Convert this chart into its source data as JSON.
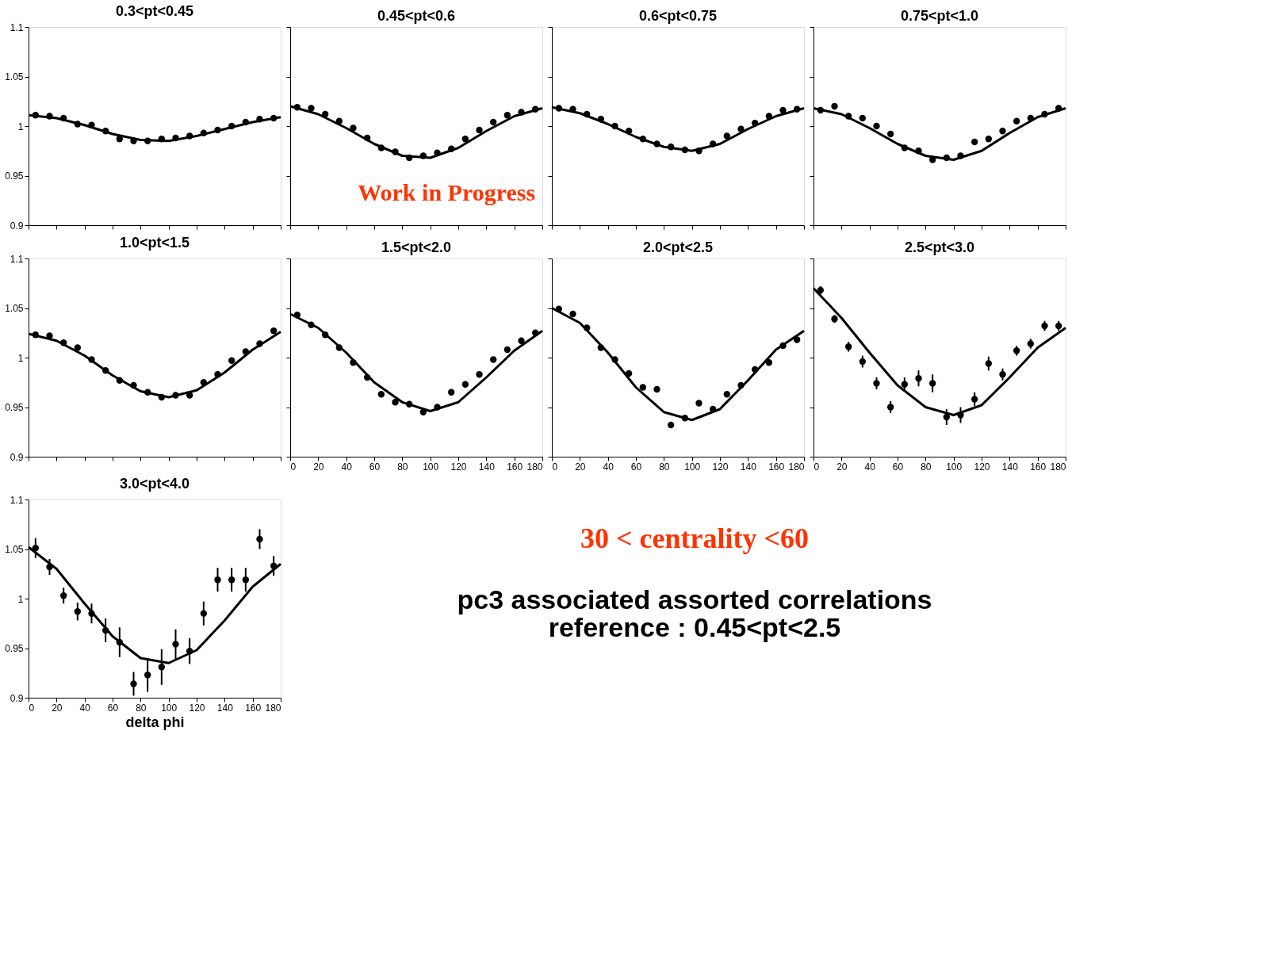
{
  "chart_data": [
    {
      "type": "scatter",
      "title": "0.3<pt<0.45",
      "x": [
        5,
        15,
        25,
        35,
        45,
        55,
        65,
        75,
        85,
        95,
        105,
        115,
        125,
        135,
        145,
        155,
        165,
        175
      ],
      "xlim": [
        0,
        180
      ],
      "xticks": [
        0,
        20,
        40,
        60,
        80,
        100,
        120,
        140,
        160,
        180
      ],
      "ylim": [
        0.9,
        1.1
      ],
      "yticks": [
        0.9,
        0.95,
        1,
        1.05,
        1.1
      ],
      "marker": "circle",
      "tick_labels": "y",
      "series": [
        {
          "color": "#000000",
          "values": [
            1.011,
            1.01,
            1.008,
            1.002,
            1.001,
            0.995,
            0.987,
            0.985,
            0.985,
            0.987,
            0.988,
            0.99,
            0.993,
            0.996,
            1.0,
            1.004,
            1.007,
            1.008
          ]
        },
        {
          "type": "line",
          "marker": "none",
          "color": "#000000",
          "x": [
            0,
            20,
            40,
            60,
            80,
            100,
            120,
            140,
            160,
            180
          ],
          "values": [
            1.011,
            1.008,
            1.001,
            0.992,
            0.986,
            0.985,
            0.99,
            0.997,
            1.004,
            1.009
          ]
        }
      ]
    },
    {
      "type": "scatter",
      "title": "0.45<pt<0.6",
      "annotations": [
        "Work in Progress"
      ],
      "x": [
        5,
        15,
        25,
        35,
        45,
        55,
        65,
        75,
        85,
        95,
        105,
        115,
        125,
        135,
        145,
        155,
        165,
        175
      ],
      "xlim": [
        0,
        180
      ],
      "xticks": [
        0,
        20,
        40,
        60,
        80,
        100,
        120,
        140,
        160,
        180
      ],
      "ylim": [
        0.9,
        1.1
      ],
      "yticks": [
        0.9,
        0.95,
        1,
        1.05,
        1.1
      ],
      "marker": "circle",
      "tick_labels": false,
      "series": [
        {
          "color": "#000000",
          "values": [
            1.019,
            1.018,
            1.012,
            1.005,
            0.998,
            0.988,
            0.978,
            0.974,
            0.968,
            0.97,
            0.973,
            0.977,
            0.987,
            0.996,
            1.004,
            1.011,
            1.014,
            1.017
          ]
        },
        {
          "type": "line",
          "marker": "none",
          "color": "#000000",
          "x": [
            0,
            20,
            40,
            60,
            80,
            100,
            120,
            140,
            160,
            180
          ],
          "values": [
            1.02,
            1.012,
            0.998,
            0.982,
            0.97,
            0.968,
            0.978,
            0.995,
            1.01,
            1.018
          ]
        }
      ]
    },
    {
      "type": "scatter",
      "title": "0.6<pt<0.75",
      "x": [
        5,
        15,
        25,
        35,
        45,
        55,
        65,
        75,
        85,
        95,
        105,
        115,
        125,
        135,
        145,
        155,
        165,
        175
      ],
      "xlim": [
        0,
        180
      ],
      "xticks": [
        0,
        20,
        40,
        60,
        80,
        100,
        120,
        140,
        160,
        180
      ],
      "ylim": [
        0.9,
        1.1
      ],
      "yticks": [
        0.9,
        0.95,
        1,
        1.05,
        1.1
      ],
      "marker": "circle",
      "tick_labels": false,
      "series": [
        {
          "color": "#000000",
          "values": [
            1.018,
            1.017,
            1.012,
            1.007,
            1.0,
            0.995,
            0.987,
            0.982,
            0.979,
            0.976,
            0.975,
            0.982,
            0.99,
            0.997,
            1.003,
            1.01,
            1.016,
            1.017
          ]
        },
        {
          "type": "line",
          "marker": "none",
          "color": "#000000",
          "x": [
            0,
            20,
            40,
            60,
            80,
            100,
            120,
            140,
            160,
            180
          ],
          "values": [
            1.019,
            1.013,
            1.002,
            0.989,
            0.979,
            0.975,
            0.982,
            0.997,
            1.01,
            1.018
          ]
        }
      ]
    },
    {
      "type": "scatter",
      "title": "0.75<pt<1.0",
      "x": [
        5,
        15,
        25,
        35,
        45,
        55,
        65,
        75,
        85,
        95,
        105,
        115,
        125,
        135,
        145,
        155,
        165,
        175
      ],
      "xlim": [
        0,
        180
      ],
      "xticks": [
        0,
        20,
        40,
        60,
        80,
        100,
        120,
        140,
        160,
        180
      ],
      "ylim": [
        0.9,
        1.1
      ],
      "yticks": [
        0.9,
        0.95,
        1,
        1.05,
        1.1
      ],
      "marker": "circle",
      "tick_labels": false,
      "series": [
        {
          "color": "#000000",
          "values": [
            1.016,
            1.02,
            1.01,
            1.008,
            1.0,
            0.992,
            0.978,
            0.975,
            0.966,
            0.968,
            0.97,
            0.984,
            0.987,
            0.995,
            1.005,
            1.008,
            1.012,
            1.018
          ]
        },
        {
          "type": "line",
          "marker": "none",
          "color": "#000000",
          "x": [
            0,
            20,
            40,
            60,
            80,
            100,
            120,
            140,
            160,
            180
          ],
          "values": [
            1.018,
            1.012,
            0.998,
            0.982,
            0.97,
            0.966,
            0.975,
            0.993,
            1.009,
            1.018
          ]
        }
      ]
    },
    {
      "type": "scatter",
      "title": "1.0<pt<1.5",
      "x": [
        5,
        15,
        25,
        35,
        45,
        55,
        65,
        75,
        85,
        95,
        105,
        115,
        125,
        135,
        145,
        155,
        165,
        175
      ],
      "xlim": [
        0,
        180
      ],
      "xticks": [
        0,
        20,
        40,
        60,
        80,
        100,
        120,
        140,
        160,
        180
      ],
      "ylim": [
        0.9,
        1.1
      ],
      "yticks": [
        0.9,
        0.95,
        1,
        1.05,
        1.1
      ],
      "marker": "circle",
      "tick_labels": "y",
      "series": [
        {
          "color": "#000000",
          "values": [
            1.023,
            1.022,
            1.015,
            1.01,
            0.998,
            0.987,
            0.977,
            0.972,
            0.965,
            0.96,
            0.962,
            0.962,
            0.975,
            0.983,
            0.997,
            1.006,
            1.014,
            1.027
          ]
        },
        {
          "type": "line",
          "marker": "none",
          "color": "#000000",
          "x": [
            0,
            20,
            40,
            60,
            80,
            100,
            120,
            140,
            160,
            180
          ],
          "values": [
            1.024,
            1.017,
            1.002,
            0.982,
            0.966,
            0.96,
            0.967,
            0.985,
            1.008,
            1.026
          ]
        }
      ]
    },
    {
      "type": "scatter",
      "title": "1.5<pt<2.0",
      "x": [
        5,
        15,
        25,
        35,
        45,
        55,
        65,
        75,
        85,
        95,
        105,
        115,
        125,
        135,
        145,
        155,
        165,
        175
      ],
      "xlim": [
        0,
        180
      ],
      "xticks": [
        0,
        20,
        40,
        60,
        80,
        100,
        120,
        140,
        160,
        180
      ],
      "ylim": [
        0.9,
        1.1
      ],
      "yticks": [
        0.9,
        0.95,
        1,
        1.05,
        1.1
      ],
      "marker": "circle",
      "tick_labels": "x",
      "series": [
        {
          "color": "#000000",
          "values": [
            1.043,
            1.033,
            1.023,
            1.01,
            0.995,
            0.98,
            0.963,
            0.955,
            0.953,
            0.945,
            0.95,
            0.965,
            0.973,
            0.983,
            0.998,
            1.008,
            1.017,
            1.025
          ]
        },
        {
          "type": "line",
          "marker": "none",
          "color": "#000000",
          "x": [
            0,
            20,
            40,
            60,
            80,
            100,
            120,
            140,
            160,
            180
          ],
          "values": [
            1.044,
            1.03,
            1.005,
            0.975,
            0.955,
            0.946,
            0.955,
            0.98,
            1.007,
            1.027
          ]
        }
      ]
    },
    {
      "type": "scatter",
      "title": "2.0<pt<2.5",
      "x": [
        5,
        15,
        25,
        35,
        45,
        55,
        65,
        75,
        85,
        95,
        105,
        115,
        125,
        135,
        145,
        155,
        165,
        175
      ],
      "xlim": [
        0,
        180
      ],
      "xticks": [
        0,
        20,
        40,
        60,
        80,
        100,
        120,
        140,
        160,
        180
      ],
      "ylim": [
        0.9,
        1.1
      ],
      "yticks": [
        0.9,
        0.95,
        1,
        1.05,
        1.1
      ],
      "marker": "circle",
      "tick_labels": "x",
      "series": [
        {
          "color": "#000000",
          "values": [
            1.049,
            1.044,
            1.03,
            1.01,
            0.998,
            0.984,
            0.97,
            0.968,
            0.932,
            0.939,
            0.954,
            0.948,
            0.963,
            0.972,
            0.988,
            0.995,
            1.012,
            1.018
          ]
        },
        {
          "type": "line",
          "marker": "none",
          "color": "#000000",
          "x": [
            0,
            20,
            40,
            60,
            80,
            100,
            120,
            140,
            160,
            180
          ],
          "values": [
            1.05,
            1.035,
            1.005,
            0.97,
            0.945,
            0.937,
            0.948,
            0.977,
            1.008,
            1.027
          ]
        }
      ]
    },
    {
      "type": "scatter",
      "title": "2.5<pt<3.0",
      "x": [
        5,
        15,
        25,
        35,
        45,
        55,
        65,
        75,
        85,
        95,
        105,
        115,
        125,
        135,
        145,
        155,
        165,
        175
      ],
      "xlim": [
        0,
        180
      ],
      "xticks": [
        0,
        20,
        40,
        60,
        80,
        100,
        120,
        140,
        160,
        180
      ],
      "ylim": [
        0.9,
        1.1
      ],
      "yticks": [
        0.9,
        0.95,
        1,
        1.05,
        1.1
      ],
      "marker": "circle",
      "tick_labels": "x",
      "series": [
        {
          "color": "#000000",
          "values": [
            1.068,
            1.039,
            1.011,
            0.996,
            0.974,
            0.95,
            0.973,
            0.979,
            0.974,
            0.94,
            0.942,
            0.958,
            0.994,
            0.983,
            1.007,
            1.014,
            1.032,
            1.032
          ],
          "errors": [
            0.004,
            0.004,
            0.005,
            0.006,
            0.006,
            0.006,
            0.007,
            0.008,
            0.009,
            0.008,
            0.008,
            0.007,
            0.007,
            0.006,
            0.005,
            0.005,
            0.005,
            0.005
          ]
        },
        {
          "type": "line",
          "marker": "none",
          "color": "#000000",
          "x": [
            0,
            20,
            40,
            60,
            80,
            100,
            120,
            140,
            160,
            180
          ],
          "values": [
            1.07,
            1.04,
            1.005,
            0.972,
            0.95,
            0.942,
            0.952,
            0.98,
            1.01,
            1.03
          ]
        }
      ]
    },
    {
      "type": "scatter",
      "title": "3.0<pt<4.0",
      "xlabel": "delta phi",
      "x": [
        5,
        15,
        25,
        35,
        45,
        55,
        65,
        75,
        85,
        95,
        105,
        115,
        125,
        135,
        145,
        155,
        165,
        175
      ],
      "xlim": [
        0,
        180
      ],
      "xticks": [
        0,
        20,
        40,
        60,
        80,
        100,
        120,
        140,
        160,
        180
      ],
      "ylim": [
        0.9,
        1.1
      ],
      "yticks": [
        0.9,
        0.95,
        1,
        1.05,
        1.1
      ],
      "marker": "circle",
      "series": [
        {
          "color": "#000000",
          "values": [
            1.051,
            1.032,
            1.003,
            0.987,
            0.985,
            0.968,
            0.956,
            0.914,
            0.923,
            0.931,
            0.954,
            0.947,
            0.985,
            1.019,
            1.019,
            1.019,
            1.06,
            1.033
          ],
          "errors": [
            0.01,
            0.008,
            0.008,
            0.009,
            0.01,
            0.012,
            0.015,
            0.012,
            0.017,
            0.018,
            0.015,
            0.013,
            0.012,
            0.012,
            0.012,
            0.012,
            0.01,
            0.01
          ]
        },
        {
          "type": "line",
          "marker": "none",
          "color": "#000000",
          "x": [
            0,
            20,
            40,
            60,
            80,
            100,
            120,
            140,
            160,
            180
          ],
          "values": [
            1.052,
            1.03,
            0.995,
            0.962,
            0.94,
            0.935,
            0.948,
            0.978,
            1.012,
            1.035
          ]
        }
      ]
    },
    {
      "type": "other",
      "annotations": [
        "30 < centrality <60",
        "pc3 associated assorted correlations",
        "reference : 0.45<pt<2.5"
      ]
    }
  ]
}
